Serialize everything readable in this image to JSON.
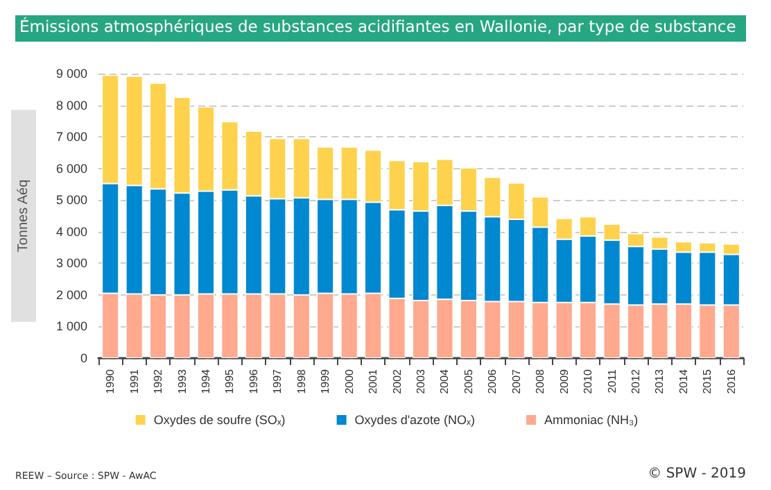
{
  "chart_data": {
    "type": "bar",
    "title": "Émissions atmosphériques de substances acidifiantes en Wallonie, par type de substance",
    "ylabel": "Tonnes Aéq",
    "categories": [
      "1990",
      "1991",
      "1992",
      "1993",
      "1994",
      "1995",
      "1996",
      "1997",
      "1998",
      "1999",
      "2000",
      "2001",
      "2002",
      "2003",
      "2004",
      "2005",
      "2006",
      "2007",
      "2008",
      "2009",
      "2010",
      "2011",
      "2012",
      "2013",
      "2014",
      "2015",
      "2016"
    ],
    "stacked": true,
    "series": [
      {
        "name": "Ammoniac (NH₃)",
        "color": "#ffa98f",
        "values": [
          2050,
          2030,
          2000,
          2000,
          2030,
          2030,
          2030,
          2030,
          2000,
          2050,
          2030,
          2050,
          1890,
          1820,
          1860,
          1820,
          1790,
          1790,
          1760,
          1760,
          1760,
          1710,
          1680,
          1710,
          1710,
          1680,
          1680
        ]
      },
      {
        "name": "Oxydes d'azote (NOₓ)",
        "color": "#0088d0",
        "values": [
          3470,
          3430,
          3350,
          3220,
          3250,
          3290,
          3100,
          3010,
          3070,
          2970,
          2990,
          2880,
          2800,
          2830,
          2970,
          2830,
          2680,
          2600,
          2380,
          2000,
          2100,
          2020,
          1850,
          1740,
          1640,
          1670,
          1600
        ]
      },
      {
        "name": "Oxydes de soufre (SOₓ)",
        "color": "#ffd24d",
        "values": [
          3430,
          3460,
          3350,
          3030,
          2670,
          2160,
          2050,
          1910,
          1880,
          1660,
          1660,
          1650,
          1560,
          1570,
          1460,
          1370,
          1250,
          1150,
          960,
          660,
          610,
          510,
          410,
          380,
          330,
          300,
          330
        ]
      }
    ],
    "ylim": [
      0,
      9000
    ],
    "yticks": [
      0,
      {
        "value": 1000,
        "label": "1 000"
      },
      {
        "value": 2000,
        "label": "2 000"
      },
      {
        "value": 3000,
        "label": "3 000"
      },
      {
        "value": 4000,
        "label": "4 000"
      },
      {
        "value": 5000,
        "label": "5 000"
      },
      {
        "value": 6000,
        "label": "6 000"
      },
      {
        "value": 7000,
        "label": "7 000"
      },
      {
        "value": 8000,
        "label": "8 000"
      },
      {
        "value": 9000,
        "label": "9 000"
      }
    ],
    "grid": "y",
    "legend": "bottom",
    "annotations": [
      "REEW – Source : SPW - AwAC",
      "© SPW - 2019"
    ]
  }
}
